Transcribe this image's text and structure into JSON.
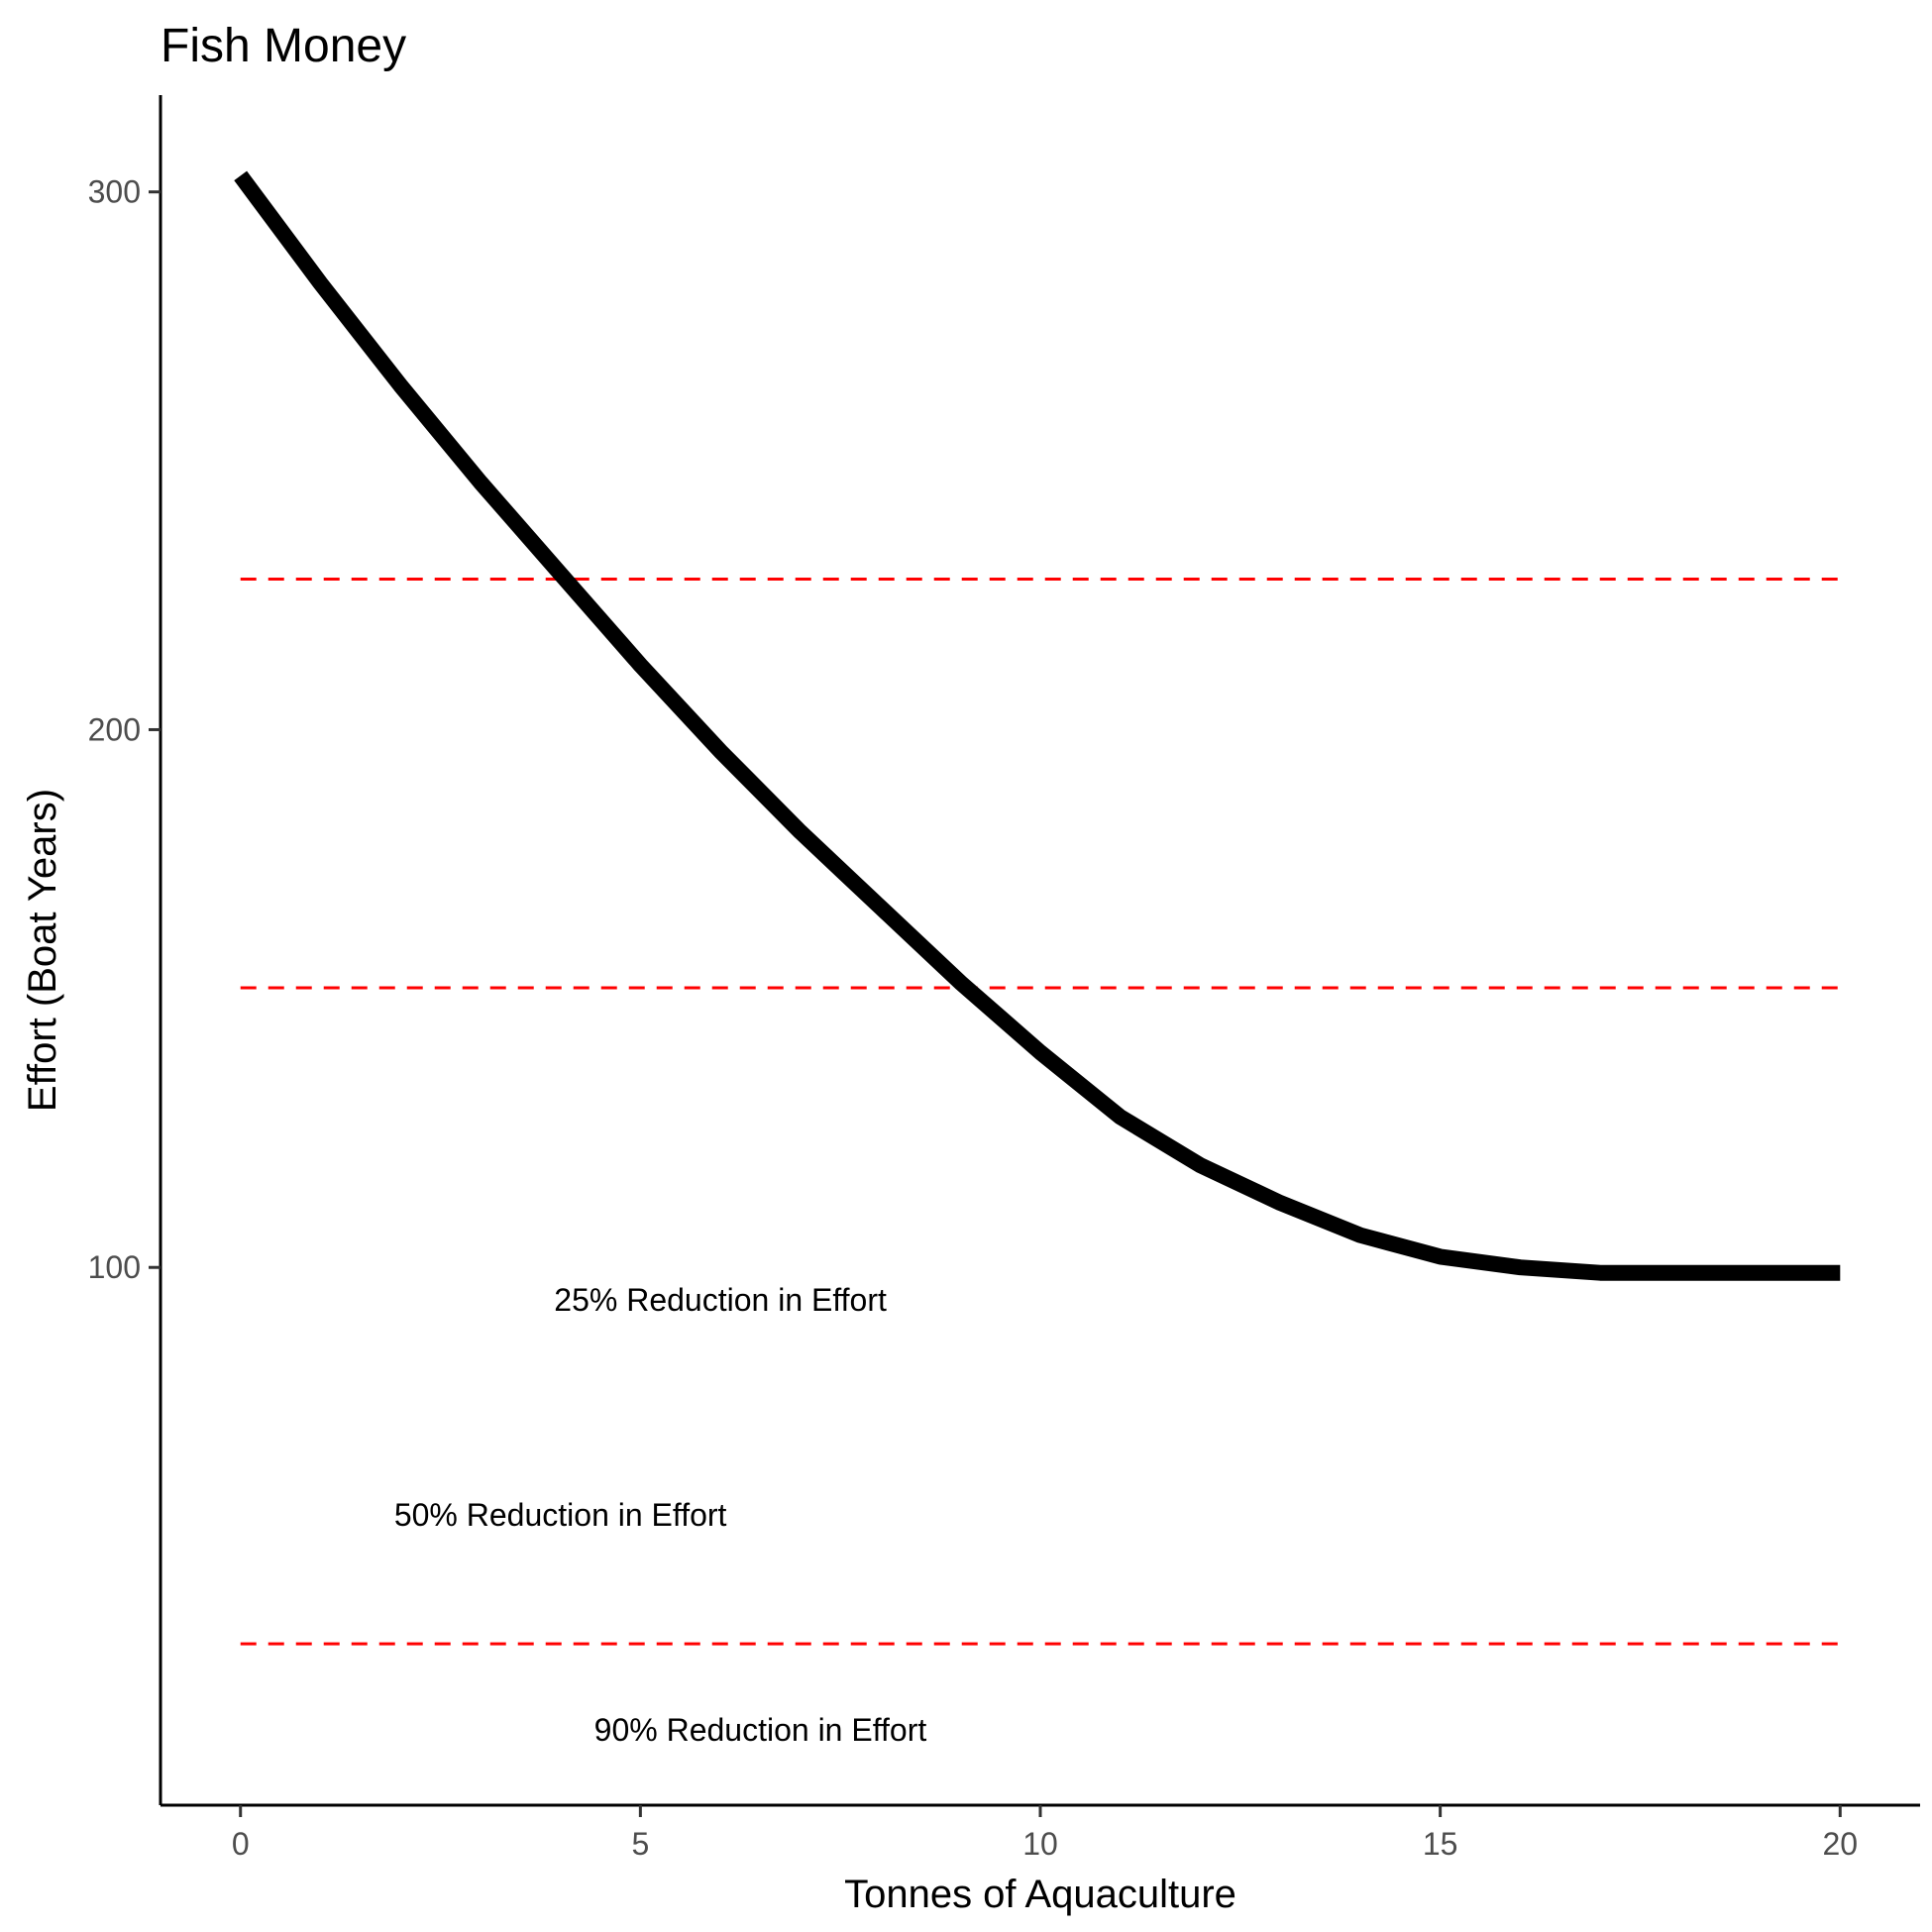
{
  "chart_data": {
    "type": "line",
    "title": "Fish Money",
    "xlabel": "Tonnes of Aquaculture",
    "ylabel": "Effort (Boat Years)",
    "xlim": [
      -1,
      21
    ],
    "ylim": [
      0,
      318
    ],
    "x_ticks": [
      0,
      5,
      10,
      15,
      20
    ],
    "y_ticks": [
      100,
      200,
      300
    ],
    "grid": false,
    "legend": "none",
    "colors": {
      "series": "#000000",
      "reference": "#ff0000",
      "axis": "#000000",
      "tick_label": "#4d4d4d"
    },
    "series": [
      {
        "x": [
          0,
          1,
          2,
          3,
          4,
          5,
          6,
          7,
          8,
          9,
          10,
          11,
          12,
          13,
          14,
          15,
          16,
          17,
          18,
          19,
          20
        ],
        "values": [
          303,
          283,
          264,
          246,
          229,
          212,
          196,
          181,
          167,
          153,
          140,
          128,
          119,
          112,
          106,
          102,
          100,
          99,
          99,
          99,
          99
        ]
      }
    ],
    "reference_lines": [
      {
        "y": 228,
        "style": "dashed"
      },
      {
        "y": 152,
        "style": "dashed"
      },
      {
        "y": 30,
        "style": "dashed"
      }
    ],
    "annotations": [
      {
        "text": "25% Reduction in Effort",
        "x": 6,
        "y": 94
      },
      {
        "text": "50% Reduction in Effort",
        "x": 4,
        "y": 54
      },
      {
        "text": "90% Reduction in Effort",
        "x": 6.5,
        "y": 14
      }
    ]
  }
}
